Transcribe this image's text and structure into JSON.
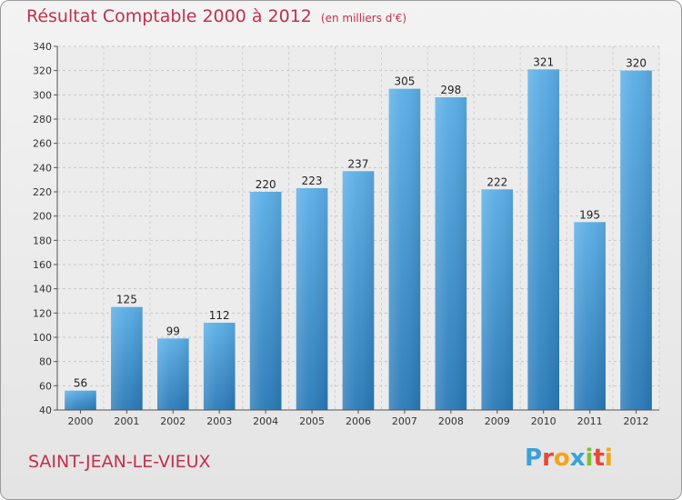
{
  "chart_data": {
    "type": "bar",
    "title": "Résultat Comptable 2000 à 2012",
    "subtitle": "(en milliers d'€)",
    "categories": [
      "2000",
      "2001",
      "2002",
      "2003",
      "2004",
      "2005",
      "2006",
      "2007",
      "2008",
      "2009",
      "2010",
      "2011",
      "2012"
    ],
    "values": [
      56,
      125,
      99,
      112,
      220,
      223,
      237,
      305,
      298,
      222,
      321,
      195,
      320
    ],
    "ylim": [
      40,
      340
    ],
    "yticks": [
      40,
      60,
      80,
      100,
      120,
      140,
      160,
      180,
      200,
      220,
      240,
      260,
      280,
      300,
      320,
      340
    ],
    "grid": true,
    "xlabel": "",
    "ylabel": ""
  },
  "place_name": "SAINT-JEAN-LE-VIEUX",
  "logo": {
    "letters": [
      "P",
      "r",
      "o",
      "x",
      "i",
      "t",
      "i"
    ],
    "colors": [
      "#3aa0d8",
      "#e8483a",
      "#f2a51a",
      "#3aa0d8",
      "#7cbf3a",
      "#e8483a",
      "#f2a51a"
    ]
  },
  "colors": {
    "bar_top": "#5aaee6",
    "bar_bottom": "#2a7ab8",
    "accent": "#c0314a"
  }
}
